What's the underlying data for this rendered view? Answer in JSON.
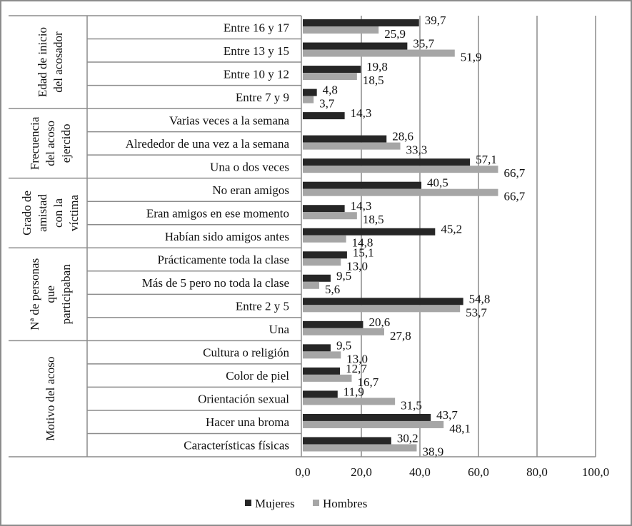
{
  "chart_data": {
    "type": "bar",
    "orientation": "horizontal",
    "groups": [
      {
        "label": [
          "Edad de inicio",
          "del acosador"
        ],
        "categories": [
          "Entre 16 y 17",
          "Entre 13 y 15",
          "Entre 10 y 12",
          "Entre 7 y 9"
        ]
      },
      {
        "label": [
          "Frecuencia",
          "del acoso",
          "ejercido"
        ],
        "categories": [
          "Varias veces a la semana",
          "Alrededor de una vez a la semana",
          "Una o dos veces"
        ]
      },
      {
        "label": [
          "Grado de",
          "amistad",
          "con la",
          "víctima"
        ],
        "categories": [
          "No eran amigos",
          "Eran amigos en ese momento",
          "Habían sido amigos antes"
        ]
      },
      {
        "label": [
          "Nª de personas",
          "que",
          "participaban"
        ],
        "categories": [
          "Prácticamente toda la clase",
          "Más de 5 pero no toda la clase",
          "Entre 2 y 5",
          "Una"
        ]
      },
      {
        "label": [
          "Motivo del acoso"
        ],
        "categories": [
          "Cultura o religión",
          "Color de piel",
          "Orientación sexual",
          "Hacer una broma",
          "Características físicas"
        ]
      }
    ],
    "series": [
      {
        "name": "Mujeres",
        "color": "#262626",
        "values": [
          39.7,
          35.7,
          19.8,
          4.8,
          14.3,
          28.6,
          57.1,
          40.5,
          14.3,
          45.2,
          15.1,
          9.5,
          54.8,
          20.6,
          9.5,
          12.7,
          11.9,
          43.7,
          30.2
        ]
      },
      {
        "name": "Hombres",
        "color": "#a6a6a6",
        "values": [
          25.9,
          51.9,
          18.5,
          3.7,
          null,
          33.3,
          66.7,
          66.7,
          18.5,
          14.8,
          13.0,
          5.6,
          53.7,
          27.8,
          13.0,
          16.7,
          31.5,
          48.1,
          38.9
        ]
      }
    ],
    "xlim": [
      0,
      100
    ],
    "xticks": [
      "0,0",
      "20,0",
      "40,0",
      "60,0",
      "80,0",
      "100,0"
    ],
    "xtick_values": [
      0,
      20,
      40,
      60,
      80,
      100
    ],
    "grid": true,
    "legend": "bottom"
  }
}
